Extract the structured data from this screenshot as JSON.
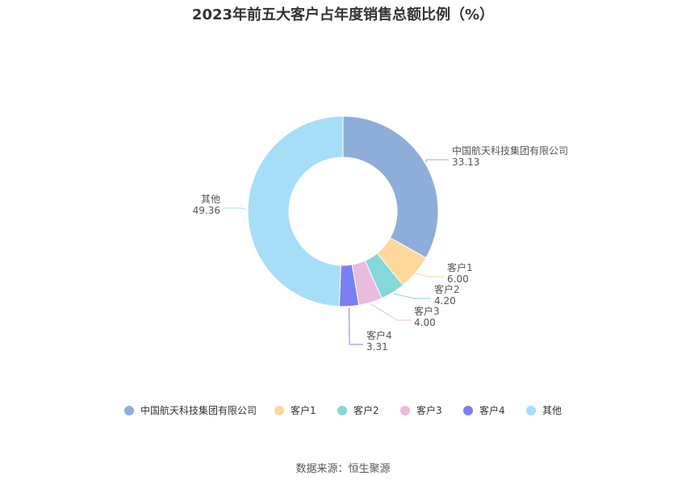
{
  "chart_data": {
    "type": "pie",
    "title": "2023年前五大客户占年度销售总额比例（%）",
    "donut": true,
    "slices": [
      {
        "name": "中国航天科技集团有限公司",
        "value": 33.13,
        "value_label": "33.13",
        "color": "#8eadd9"
      },
      {
        "name": "客户1",
        "value": 6.0,
        "value_label": "6.00",
        "color": "#fdd89a"
      },
      {
        "name": "客户2",
        "value": 4.2,
        "value_label": "4.20",
        "color": "#86d7d9"
      },
      {
        "name": "客户3",
        "value": 4.0,
        "value_label": "4.00",
        "color": "#e8bcdc"
      },
      {
        "name": "客户4",
        "value": 3.31,
        "value_label": "3.31",
        "color": "#7b7ff5"
      },
      {
        "name": "其他",
        "value": 49.36,
        "value_label": "49.36",
        "color": "#a6def8"
      }
    ],
    "legend_position": "bottom"
  },
  "source_text": "数据来源：恒生聚源"
}
